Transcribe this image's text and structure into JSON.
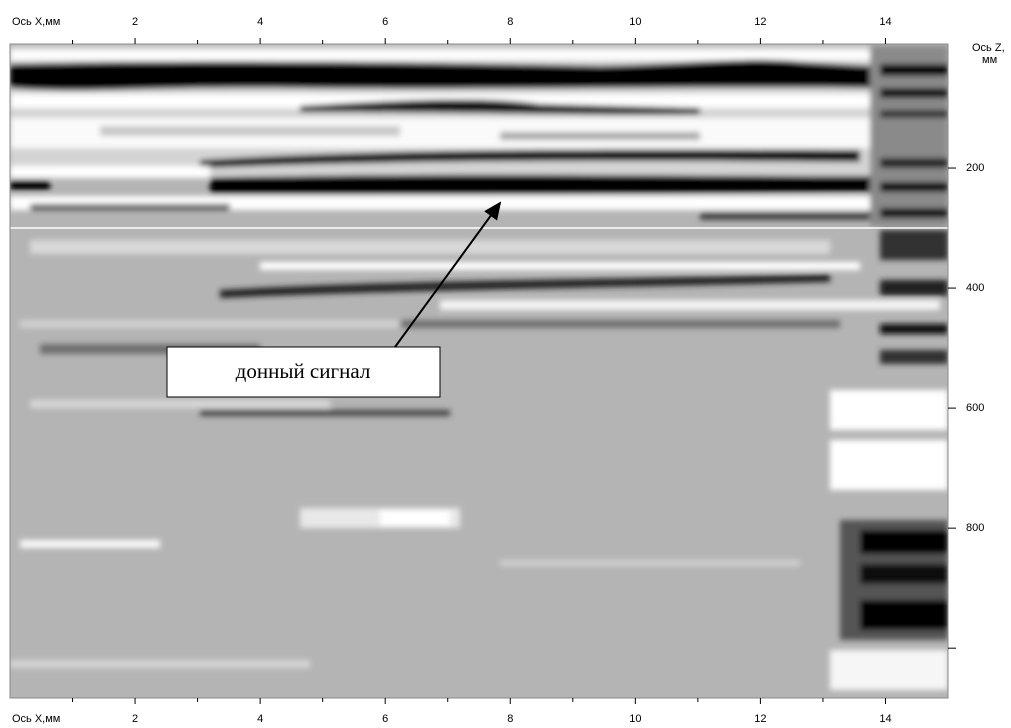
{
  "chart_data": {
    "type": "image",
    "x_label": "Ось X,мм",
    "y_label": [
      "Ось Z,",
      "мм"
    ],
    "annotation": "донный сигнал",
    "xlim": [
      0,
      15
    ],
    "xticks": [
      2,
      4,
      6,
      8,
      10,
      12,
      14
    ],
    "xminor_ticks": [
      1,
      3,
      5,
      7,
      9,
      11,
      13
    ],
    "ylim": [
      0,
      1083
    ],
    "yticks": [
      200,
      400,
      600,
      800
    ],
    "yminor_ticks": [
      1000
    ]
  }
}
